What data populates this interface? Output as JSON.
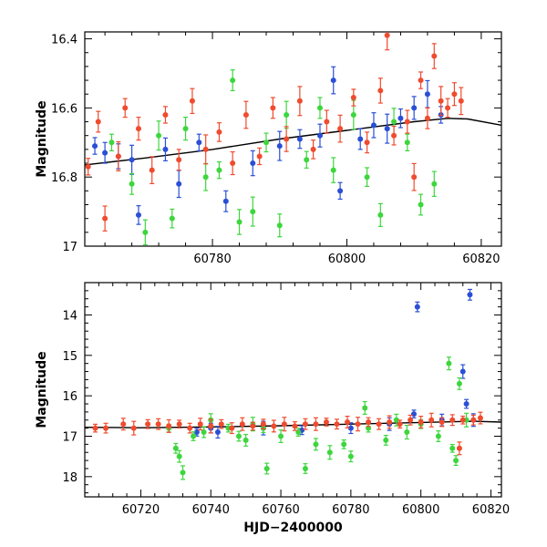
{
  "chart_data": [
    {
      "type": "scatter",
      "title": "",
      "xlabel": "",
      "ylabel": "Magnitude",
      "xlim": [
        60761,
        60823
      ],
      "ylim": [
        17.0,
        16.38
      ],
      "y_inverted": true,
      "grid": false,
      "xticks": [
        60780,
        60800,
        60820
      ],
      "yticks": [
        16.4,
        16.6,
        16.8,
        17
      ],
      "xtick_labels": [
        "60780",
        "60800",
        "60820"
      ],
      "ytick_labels": [
        "16.4",
        "16.6",
        "16.8",
        "17"
      ],
      "trend_curve": {
        "x": [
          60761,
          60770,
          60780,
          60790,
          60800,
          60810,
          60815,
          60818,
          60823
        ],
        "y": [
          16.765,
          16.745,
          16.72,
          16.69,
          16.665,
          16.64,
          16.63,
          16.632,
          16.65
        ]
      },
      "series": [
        {
          "color": "#2a4fd6",
          "points": [
            [
              60762.5,
              16.71
            ],
            [
              60764,
              16.73
            ],
            [
              60766,
              16.74
            ],
            [
              60768,
              16.75
            ],
            [
              60769,
              16.91
            ],
            [
              60773,
              16.72
            ],
            [
              60775,
              16.82
            ],
            [
              60778,
              16.7
            ],
            [
              60782,
              16.87
            ],
            [
              60786,
              16.76
            ],
            [
              60790,
              16.71
            ],
            [
              60793,
              16.69
            ],
            [
              60796,
              16.68
            ],
            [
              60798,
              16.52
            ],
            [
              60799,
              16.84
            ],
            [
              60802,
              16.69
            ],
            [
              60804,
              16.65
            ],
            [
              60806,
              16.66
            ],
            [
              60808,
              16.63
            ],
            [
              60810,
              16.6
            ],
            [
              60812,
              16.56
            ],
            [
              60814,
              16.62
            ]
          ]
        },
        {
          "color": "#3dd63d",
          "points": [
            [
              60765,
              16.7
            ],
            [
              60768,
              16.82
            ],
            [
              60770,
              16.96
            ],
            [
              60772,
              16.68
            ],
            [
              60774,
              16.92
            ],
            [
              60776,
              16.66
            ],
            [
              60779,
              16.8
            ],
            [
              60781,
              16.78
            ],
            [
              60783,
              16.52
            ],
            [
              60784,
              16.93
            ],
            [
              60786,
              16.9
            ],
            [
              60788,
              16.7
            ],
            [
              60790,
              16.94
            ],
            [
              60791,
              16.62
            ],
            [
              60794,
              16.75
            ],
            [
              60796,
              16.6
            ],
            [
              60798,
              16.78
            ],
            [
              60801,
              16.62
            ],
            [
              60803,
              16.8
            ],
            [
              60805,
              16.91
            ],
            [
              60807,
              16.64
            ],
            [
              60809,
              16.7
            ],
            [
              60811,
              16.88
            ],
            [
              60813,
              16.82
            ]
          ]
        },
        {
          "color": "#f04b2e",
          "points": [
            [
              60761.5,
              16.77
            ],
            [
              60763,
              16.64
            ],
            [
              60764,
              16.92
            ],
            [
              60766,
              16.74
            ],
            [
              60767,
              16.6
            ],
            [
              60769,
              16.66
            ],
            [
              60771,
              16.78
            ],
            [
              60773,
              16.62
            ],
            [
              60775,
              16.75
            ],
            [
              60777,
              16.58
            ],
            [
              60779,
              16.72
            ],
            [
              60781,
              16.67
            ],
            [
              60783,
              16.76
            ],
            [
              60785,
              16.62
            ],
            [
              60787,
              16.74
            ],
            [
              60789,
              16.6
            ],
            [
              60791,
              16.69
            ],
            [
              60793,
              16.58
            ],
            [
              60795,
              16.72
            ],
            [
              60797,
              16.64
            ],
            [
              60799,
              16.66
            ],
            [
              60801,
              16.57
            ],
            [
              60803,
              16.7
            ],
            [
              60805,
              16.55
            ],
            [
              60806,
              16.39
            ],
            [
              60807,
              16.68
            ],
            [
              60809,
              16.64
            ],
            [
              60810,
              16.8
            ],
            [
              60811,
              16.52
            ],
            [
              60812,
              16.63
            ],
            [
              60813,
              16.45
            ],
            [
              60814,
              16.58
            ],
            [
              60815,
              16.6
            ],
            [
              60816,
              16.56
            ],
            [
              60817,
              16.58
            ]
          ]
        }
      ]
    },
    {
      "type": "scatter",
      "title": "",
      "xlabel": "HJD−2400000",
      "ylabel": "Magnitude",
      "xlim": [
        60704,
        60823
      ],
      "ylim": [
        18.5,
        13.2
      ],
      "y_inverted": true,
      "grid": false,
      "xticks": [
        60720,
        60740,
        60760,
        60780,
        60800,
        60820
      ],
      "yticks": [
        14,
        15,
        16,
        17,
        18
      ],
      "xtick_labels": [
        "60720",
        "60740",
        "60760",
        "60780",
        "60800",
        "60820"
      ],
      "ytick_labels": [
        "14",
        "15",
        "16",
        "17",
        "18"
      ],
      "trend_curve": {
        "x": [
          60704,
          60720,
          60740,
          60760,
          60780,
          60800,
          60815,
          60823
        ],
        "y": [
          16.78,
          16.79,
          16.77,
          16.74,
          16.7,
          16.66,
          16.63,
          16.65
        ]
      },
      "series": [
        {
          "color": "#2a4fd6",
          "points": [
            [
              60736,
              16.9
            ],
            [
              60740,
              16.8
            ],
            [
              60742,
              16.9
            ],
            [
              60755,
              16.8
            ],
            [
              60766,
              16.85
            ],
            [
              60780,
              16.8
            ],
            [
              60791,
              16.7
            ],
            [
              60798,
              16.45
            ],
            [
              60799,
              13.8
            ],
            [
              60806,
              16.6
            ],
            [
              60812,
              15.4
            ],
            [
              60813,
              16.2
            ],
            [
              60814,
              13.5
            ],
            [
              60815,
              16.6
            ]
          ]
        },
        {
          "color": "#3dd63d",
          "points": [
            [
              60728,
              16.8
            ],
            [
              60730,
              17.3
            ],
            [
              60731,
              17.5
            ],
            [
              60732,
              17.9
            ],
            [
              60735,
              17.0
            ],
            [
              60738,
              16.9
            ],
            [
              60740,
              16.6
            ],
            [
              60745,
              16.8
            ],
            [
              60748,
              17.0
            ],
            [
              60750,
              17.1
            ],
            [
              60752,
              16.7
            ],
            [
              60755,
              16.8
            ],
            [
              60756,
              17.8
            ],
            [
              60760,
              17.0
            ],
            [
              60765,
              16.9
            ],
            [
              60767,
              17.8
            ],
            [
              60770,
              17.2
            ],
            [
              60774,
              17.4
            ],
            [
              60778,
              17.2
            ],
            [
              60780,
              17.5
            ],
            [
              60784,
              16.3
            ],
            [
              60785,
              16.8
            ],
            [
              60790,
              17.1
            ],
            [
              60793,
              16.6
            ],
            [
              60796,
              16.9
            ],
            [
              60800,
              16.7
            ],
            [
              60805,
              17.0
            ],
            [
              60808,
              15.2
            ],
            [
              60809,
              17.3
            ],
            [
              60810,
              17.6
            ],
            [
              60811,
              15.7
            ],
            [
              60813,
              16.6
            ]
          ]
        },
        {
          "color": "#f04b2e",
          "points": [
            [
              60707,
              16.8
            ],
            [
              60710,
              16.8
            ],
            [
              60715,
              16.7
            ],
            [
              60718,
              16.8
            ],
            [
              60722,
              16.7
            ],
            [
              60725,
              16.7
            ],
            [
              60728,
              16.75
            ],
            [
              60731,
              16.7
            ],
            [
              60734,
              16.8
            ],
            [
              60737,
              16.7
            ],
            [
              60740,
              16.75
            ],
            [
              60743,
              16.7
            ],
            [
              60746,
              16.8
            ],
            [
              60749,
              16.7
            ],
            [
              60752,
              16.75
            ],
            [
              60755,
              16.7
            ],
            [
              60758,
              16.75
            ],
            [
              60761,
              16.7
            ],
            [
              60764,
              16.75
            ],
            [
              60767,
              16.7
            ],
            [
              60770,
              16.7
            ],
            [
              60773,
              16.65
            ],
            [
              60776,
              16.7
            ],
            [
              60779,
              16.65
            ],
            [
              60782,
              16.7
            ],
            [
              60785,
              16.65
            ],
            [
              60788,
              16.7
            ],
            [
              60791,
              16.65
            ],
            [
              60794,
              16.7
            ],
            [
              60797,
              16.6
            ],
            [
              60800,
              16.65
            ],
            [
              60803,
              16.6
            ],
            [
              60806,
              16.65
            ],
            [
              60809,
              16.6
            ],
            [
              60811,
              17.3
            ],
            [
              60812,
              16.6
            ],
            [
              60815,
              16.6
            ],
            [
              60817,
              16.55
            ]
          ]
        }
      ]
    }
  ]
}
